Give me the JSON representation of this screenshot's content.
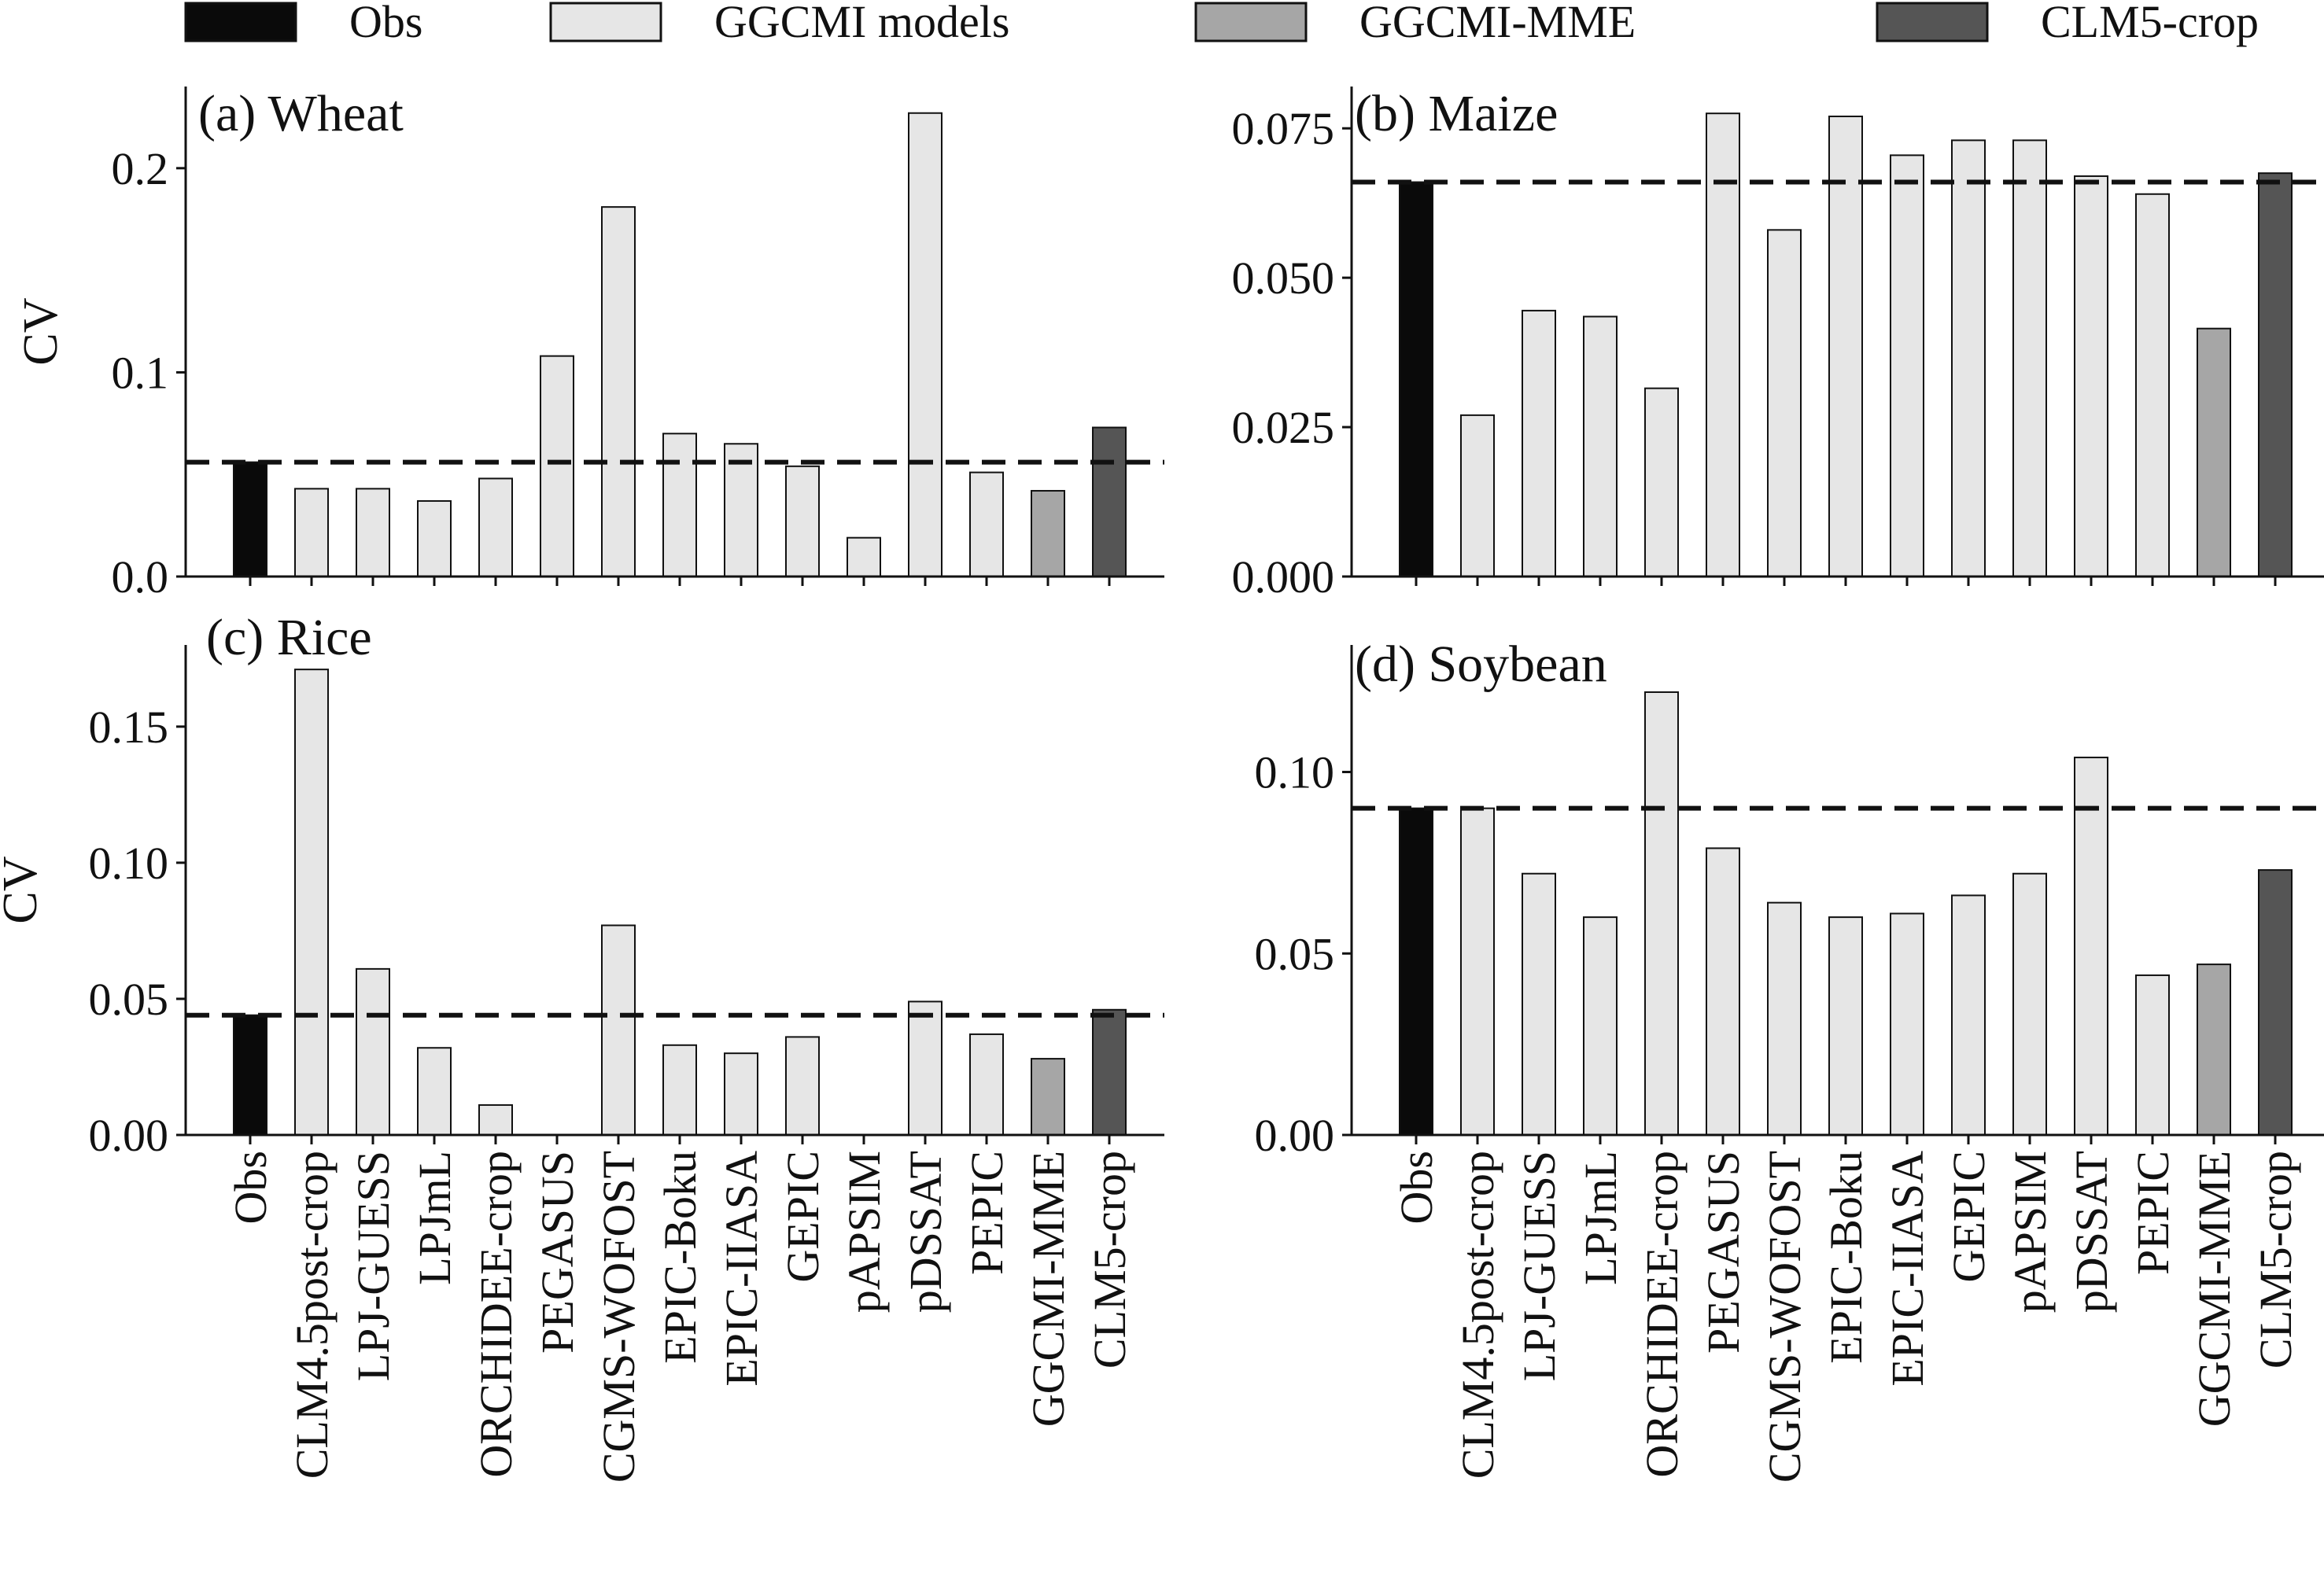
{
  "legend": [
    {
      "label": "Obs",
      "color": "#0a0a0a"
    },
    {
      "label": "GGCMI models",
      "color": "#e6e6e6"
    },
    {
      "label": "GGCMI-MME",
      "color": "#a6a6a6"
    },
    {
      "label": "CLM5-crop",
      "color": "#555555"
    }
  ],
  "categories": [
    "Obs",
    "CLM4.5post-crop",
    "LPJ-GUESS",
    "LPJmL",
    "ORCHIDEE-crop",
    "PEGASUS",
    "CGMS-WOFOST",
    "EPIC-Boku",
    "EPIC-IIASA",
    "GEPIC",
    "pAPSIM",
    "pDSSAT",
    "PEPIC",
    "GGCMI-MME",
    "CLM5-crop"
  ],
  "chart_data": [
    {
      "type": "bar",
      "title": "(a) Wheat",
      "ylabel": "CV",
      "ylim": [
        0,
        0.24
      ],
      "yticks": [
        "0.0",
        "0.1",
        "0.2"
      ],
      "reference_line": 0.056,
      "values": [
        0.056,
        0.043,
        0.043,
        0.037,
        0.048,
        0.108,
        0.181,
        0.07,
        0.065,
        0.054,
        0.019,
        0.227,
        0.051,
        0.042,
        0.073
      ],
      "show_xticklabels": false
    },
    {
      "type": "bar",
      "title": "(b) Maize",
      "ylabel": "",
      "ylim": [
        0,
        0.082
      ],
      "yticks": [
        "0.000",
        "0.025",
        "0.050",
        "0.075"
      ],
      "reference_line": 0.066,
      "values": [
        0.066,
        0.027,
        0.0445,
        0.0435,
        0.0315,
        0.0775,
        0.058,
        0.077,
        0.0705,
        0.073,
        0.073,
        0.067,
        0.064,
        0.0415,
        0.0675
      ],
      "show_xticklabels": false
    },
    {
      "type": "bar",
      "title": "(c) Rice",
      "ylabel": "CV",
      "ylim": [
        0,
        0.18
      ],
      "yticks": [
        "0.00",
        "0.05",
        "0.10",
        "0.15"
      ],
      "reference_line": 0.044,
      "values": [
        0.044,
        0.171,
        0.061,
        0.032,
        0.011,
        0.0,
        0.077,
        0.033,
        0.03,
        0.036,
        0.0,
        0.049,
        0.037,
        0.028,
        0.046
      ],
      "show_xticklabels": true
    },
    {
      "type": "bar",
      "title": "(d) Soybean",
      "ylabel": "",
      "ylim": [
        0,
        0.135
      ],
      "yticks": [
        "0.00",
        "0.05",
        "0.10"
      ],
      "reference_line": 0.09,
      "values": [
        0.09,
        0.09,
        0.072,
        0.06,
        0.122,
        0.079,
        0.064,
        0.06,
        0.061,
        0.066,
        0.072,
        0.104,
        0.044,
        0.047,
        0.073
      ],
      "show_xticklabels": true
    }
  ]
}
